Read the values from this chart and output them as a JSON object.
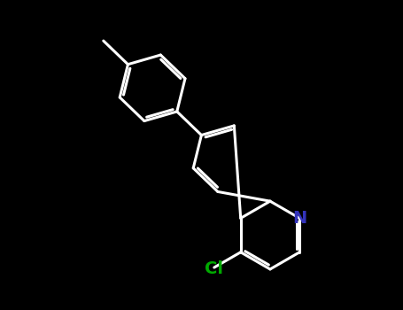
{
  "background_color": "#000000",
  "bond_color": "#ffffff",
  "N_color": "#3333bb",
  "Cl_color": "#00aa00",
  "bond_width": 2.2,
  "font_size_N": 14,
  "font_size_Cl": 14,
  "figsize": [
    4.55,
    3.5
  ],
  "dpi": 100
}
